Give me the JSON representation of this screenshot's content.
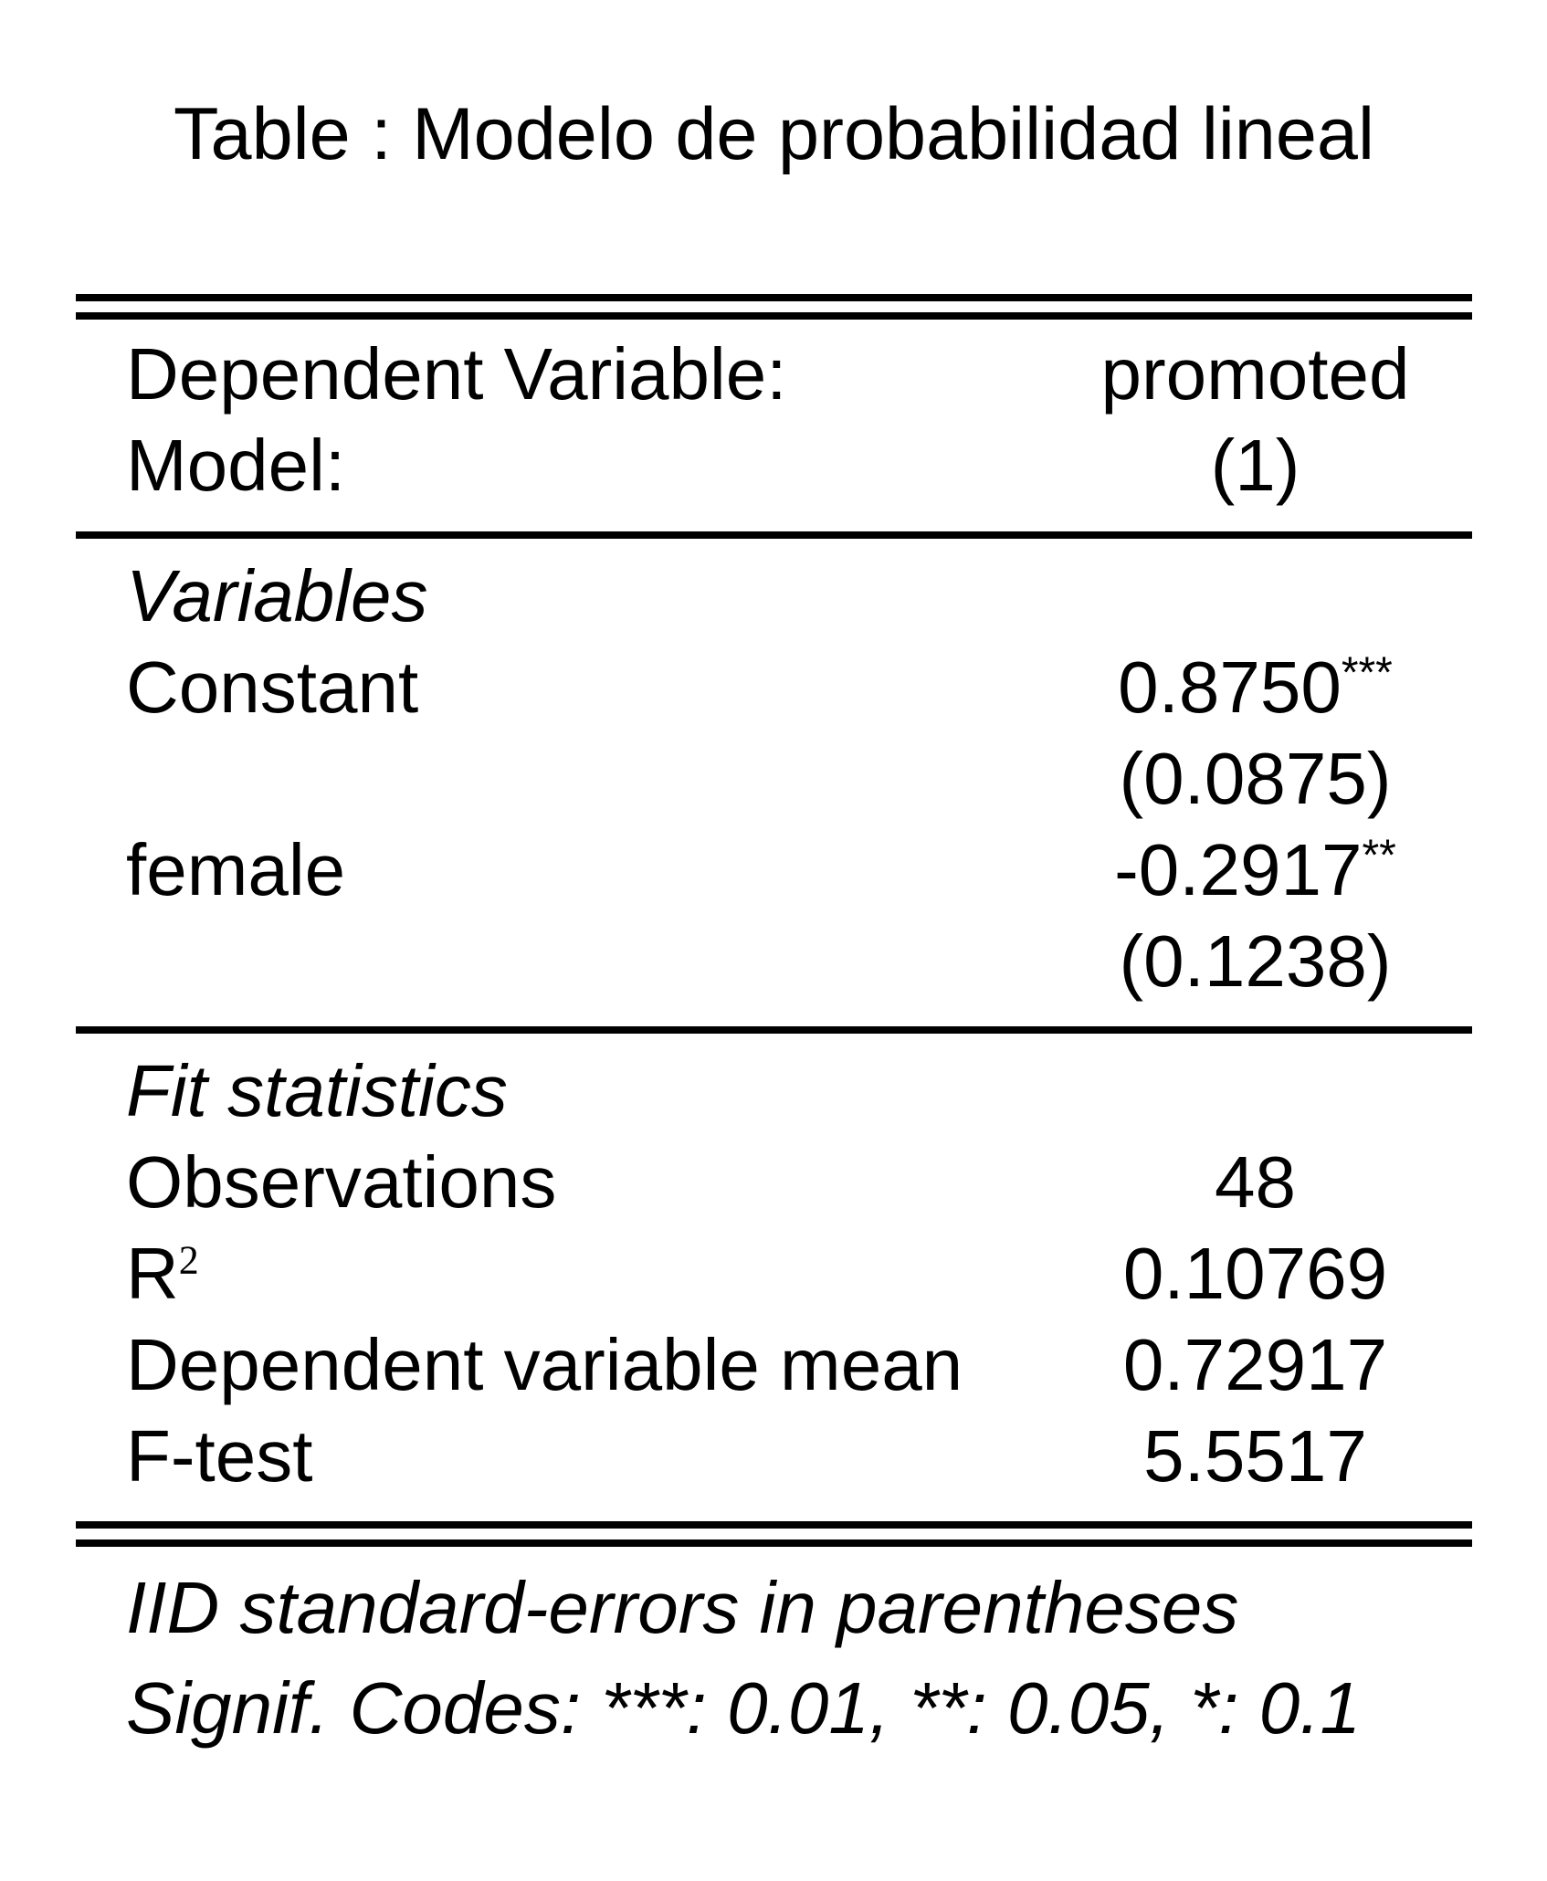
{
  "title": "Table : Modelo de probabilidad lineal",
  "header": {
    "rows": [
      {
        "label": "Dependent Variable:",
        "value": "promoted"
      },
      {
        "label": "Model:",
        "value": "(1)"
      }
    ]
  },
  "sections": [
    {
      "heading": "Variables",
      "rows": [
        {
          "label": "Constant",
          "value": "0.8750",
          "stars": "***"
        },
        {
          "label": "",
          "value": "(0.0875)",
          "stars": ""
        },
        {
          "label": "female",
          "value": "-0.2917",
          "stars": "**"
        },
        {
          "label": "",
          "value": "(0.1238)",
          "stars": ""
        }
      ]
    },
    {
      "heading": "Fit statistics",
      "rows": [
        {
          "label": "Observations",
          "label_sup": "",
          "value": "48"
        },
        {
          "label": "R",
          "label_sup": "2",
          "value": "0.10769"
        },
        {
          "label": "Dependent variable mean",
          "label_sup": "",
          "value": "0.72917"
        },
        {
          "label": "F-test",
          "label_sup": "",
          "value": "5.5517"
        }
      ]
    }
  ],
  "footnotes": [
    "IID standard-errors in parentheses",
    "Signif. Codes: ***: 0.01, **: 0.05, *: 0.1"
  ]
}
